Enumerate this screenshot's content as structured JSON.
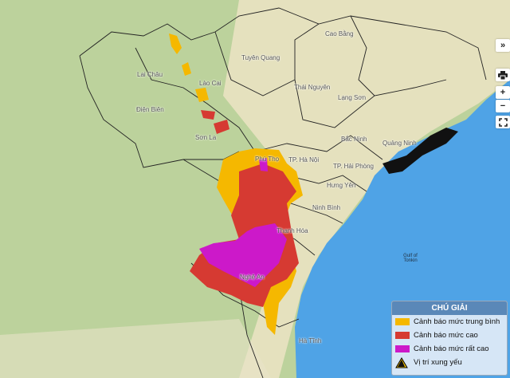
{
  "map": {
    "colors": {
      "land_green": "#b9cf98",
      "land_beige": "#efe6c8",
      "sea": "#4fa3e6",
      "medium": "#f5b800",
      "high": "#d63a32",
      "very_high": "#cc19c9"
    },
    "labels": [
      {
        "text": "Cao Bằng"
      },
      {
        "text": "Tuyên Quang"
      },
      {
        "text": "Lai Châu"
      },
      {
        "text": "Lào Cai"
      },
      {
        "text": "Thái Nguyên"
      },
      {
        "text": "Điện Biên"
      },
      {
        "text": "Lạng Sơn"
      },
      {
        "text": "Sơn La"
      },
      {
        "text": "Bắc Ninh"
      },
      {
        "text": "Quảng Ninh"
      },
      {
        "text": "Phú Thọ"
      },
      {
        "text": "TP. Hà Nội"
      },
      {
        "text": "TP. Hải Phòng"
      },
      {
        "text": "Hưng Yên"
      },
      {
        "text": "Ninh Bình"
      },
      {
        "text": "Thanh Hóa"
      },
      {
        "text": "Nghệ An"
      },
      {
        "text": "Hà Tĩnh"
      },
      {
        "text": "Gulf of Tonkin"
      }
    ]
  },
  "controls": {
    "collapse": "»",
    "print_icon": "printer-icon",
    "zoom_in": "+",
    "zoom_out": "−",
    "fullscreen_icon": "fullscreen-icon"
  },
  "legend": {
    "title": "CHÚ GIẢI",
    "items": [
      {
        "label": "Cảnh báo mức trung bình",
        "color": "#f5b800"
      },
      {
        "label": "Cảnh báo mức cao",
        "color": "#d63a32"
      },
      {
        "label": "Cảnh báo mức rất cao",
        "color": "#cc19c9"
      },
      {
        "label": "Vị trí xung yếu",
        "icon": "warning-triangle-icon"
      }
    ]
  }
}
